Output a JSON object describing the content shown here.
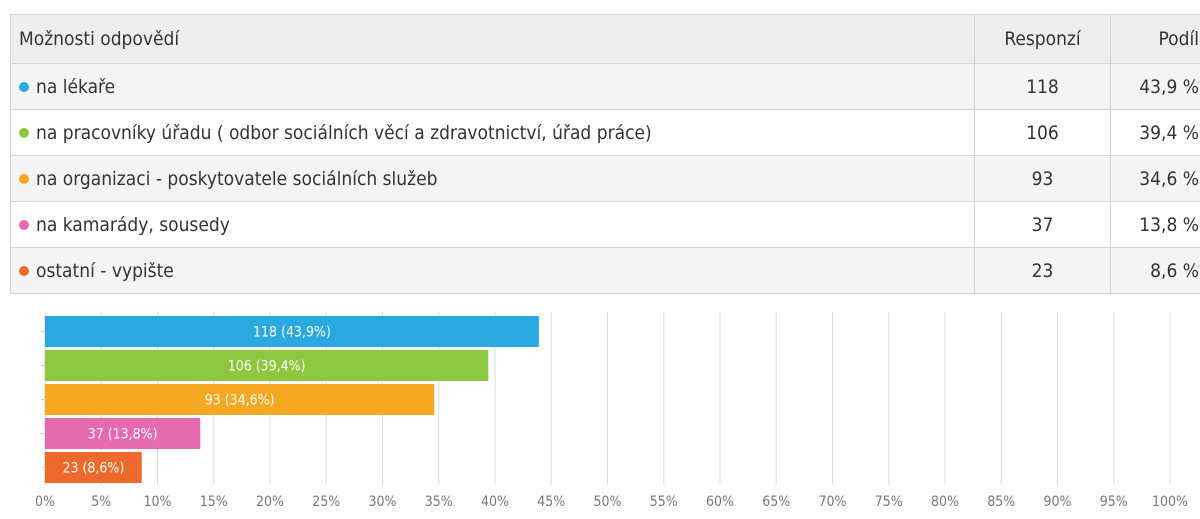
{
  "table": {
    "headers": {
      "label": "Možnosti odpovědí",
      "count": "Responzí",
      "share": "Podíl"
    },
    "rows": [
      {
        "label": "na lékaře",
        "count": "118",
        "share": "43,9 %",
        "color": "#29a9df"
      },
      {
        "label": "na pracovníky úřadu ( odbor sociálních věcí a zdravotnictví, úřad práce)",
        "count": "106",
        "share": "39,4 %",
        "color": "#8dc63f"
      },
      {
        "label": "na organizaci - poskytovatele sociálních služeb",
        "count": "93",
        "share": "34,6 %",
        "color": "#f7a823"
      },
      {
        "label": "na kamarády, sousedy",
        "count": "37",
        "share": "13,8 %",
        "color": "#e56aaf"
      },
      {
        "label": "ostatní - vypište",
        "count": "23",
        "share": "8,6 %",
        "color": "#ee6a2c"
      }
    ]
  },
  "chart_data": {
    "type": "bar",
    "orientation": "horizontal",
    "categories": [
      "na lékaře",
      "na pracovníky úřadu ( odbor sociálních věcí a zdravotnictví, úřad práce)",
      "na organizaci - poskytovatele sociálních služeb",
      "na kamarády, sousedy",
      "ostatní - vypište"
    ],
    "values": [
      43.9,
      39.4,
      34.6,
      13.8,
      8.6
    ],
    "data_labels": [
      "118 (43,9%)",
      "106 (39,4%)",
      "93 (34,6%)",
      "37 (13,8%)",
      "23 (8,6%)"
    ],
    "colors": [
      "#29a9df",
      "#8dc63f",
      "#f7a823",
      "#e56aaf",
      "#ee6a2c"
    ],
    "xlim": [
      0,
      100
    ],
    "xticks": [
      0,
      5,
      10,
      15,
      20,
      25,
      30,
      35,
      40,
      45,
      50,
      55,
      60,
      65,
      70,
      75,
      80,
      85,
      90,
      95,
      100
    ],
    "xtick_labels": [
      "0%",
      "5%",
      "10%",
      "15%",
      "20%",
      "25%",
      "30%",
      "35%",
      "40%",
      "45%",
      "50%",
      "55%",
      "60%",
      "65%",
      "70%",
      "75%",
      "80%",
      "85%",
      "90%",
      "95%",
      "100%"
    ],
    "grid": true,
    "legend": "none"
  }
}
